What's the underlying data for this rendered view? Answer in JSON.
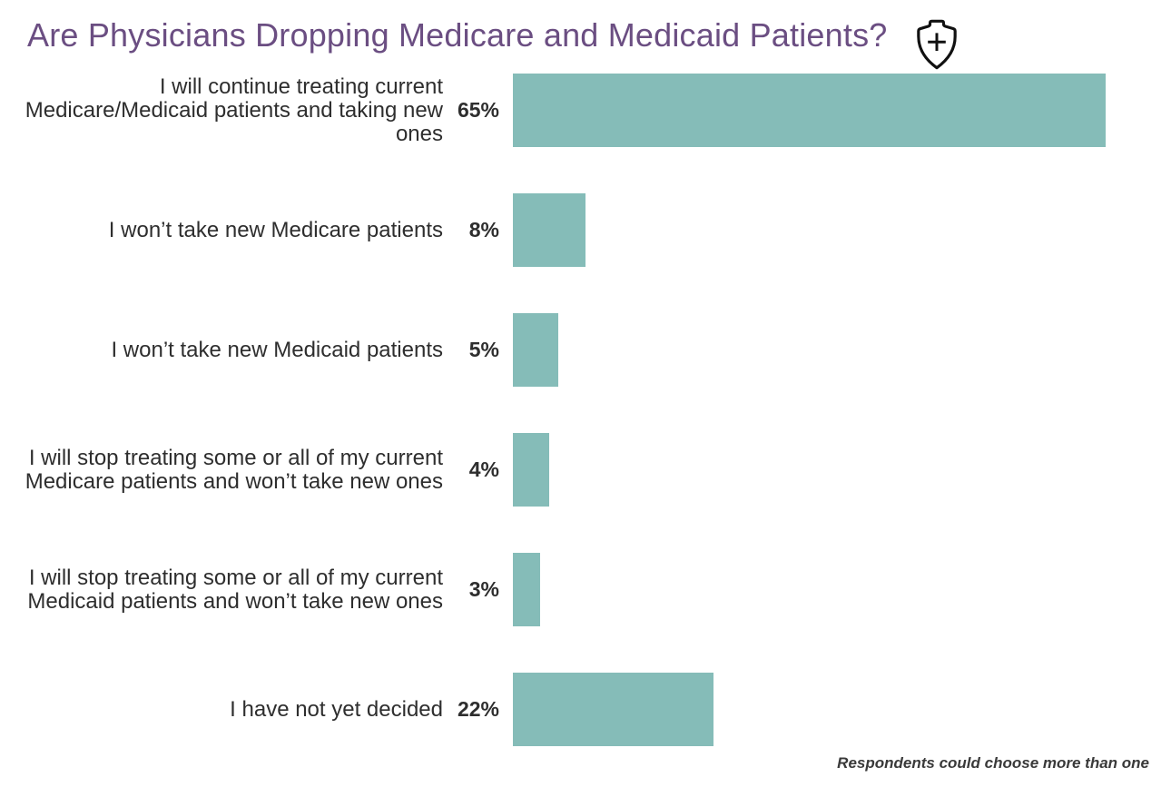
{
  "header": {
    "title": "Are Physicians Dropping Medicare and Medicaid Patients?",
    "icon": "shield-plus-icon"
  },
  "footnote": "Respondents could choose more than one",
  "colors": {
    "title": "#6b4e82",
    "bar": "#85bcb8",
    "text": "#2e2e2e",
    "icon_stroke": "#111111"
  },
  "chart_data": {
    "type": "bar",
    "orientation": "horizontal",
    "title": "Are Physicians Dropping Medicare and Medicaid Patients?",
    "categories": [
      "I will continue treating current Medicare/Medicaid patients and taking new ones",
      "I won’t take new Medicare patients",
      "I won’t take new Medicaid patients",
      "I will stop treating some or all of my current Medicare patients and won’t take new ones",
      "I will stop treating some or all of my current Medicaid patients and won’t take new ones",
      "I have not yet decided"
    ],
    "values": [
      65,
      8,
      5,
      4,
      3,
      22
    ],
    "value_labels": [
      "65%",
      "8%",
      "5%",
      "4%",
      "3%",
      "22%"
    ],
    "unit": "percent",
    "xlim": [
      0,
      65
    ],
    "grid": false,
    "legend": false,
    "value_label_position": "left-of-bar",
    "annotation": "Respondents could choose more than one"
  }
}
